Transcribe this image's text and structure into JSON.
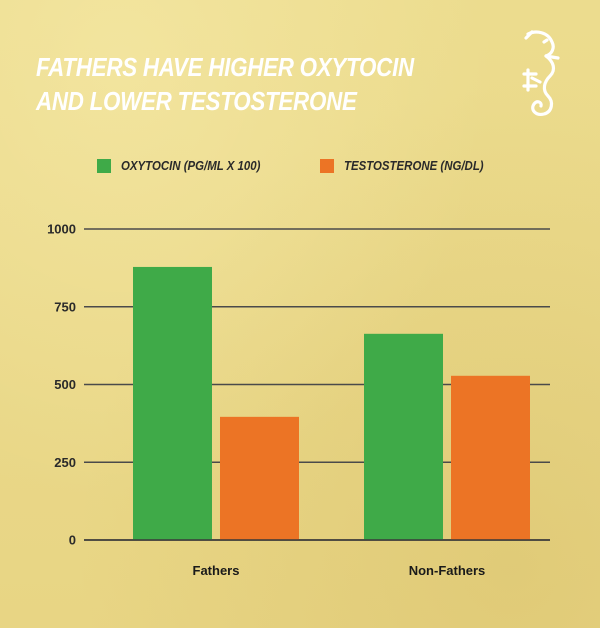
{
  "title_lines": [
    "FATHERS HAVE HIGHER OXYTOCIN",
    "AND LOWER TESTOSTERONE"
  ],
  "logo": {
    "icon": "seahorse-logo-icon",
    "color": "#ffffff"
  },
  "legend": [
    {
      "label": "OXYTOCIN (PG/ML X 100)",
      "color": "#3faa48"
    },
    {
      "label": "TESTOSTERONE (NG/DL)",
      "color": "#ec7425"
    }
  ],
  "chart_data": {
    "type": "bar",
    "categories": [
      "Fathers",
      "Non-Fathers"
    ],
    "series": [
      {
        "name": "OXYTOCIN (PG/ML X 100)",
        "color": "#3faa48",
        "values": [
          878,
          663
        ]
      },
      {
        "name": "TESTOSTERONE (NG/DL)",
        "color": "#ec7425",
        "values": [
          396,
          528
        ]
      }
    ],
    "ylim": [
      0,
      1000
    ],
    "yticks": [
      "1000",
      "750",
      "500",
      "250",
      "0"
    ],
    "grid": true,
    "legend_position": "top"
  }
}
